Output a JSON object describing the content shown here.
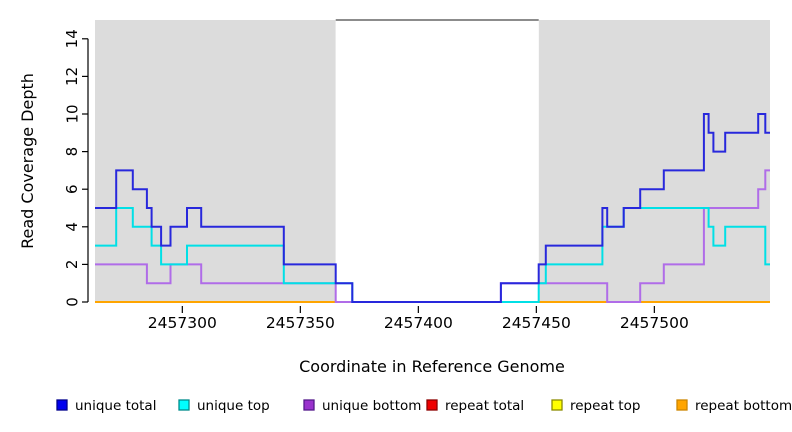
{
  "figure": {
    "background": "#FFFFFF"
  },
  "chart_data": {
    "type": "line",
    "step": true,
    "title": "",
    "xlabel": "Coordinate in Reference Genome",
    "ylabel": "Read Coverage Depth",
    "xlim": [
      2457263,
      2457549
    ],
    "ylim": [
      0,
      15
    ],
    "x_ticks": [
      "2457300",
      "2457350",
      "2457400",
      "2457450",
      "2457500"
    ],
    "x_tick_values": [
      2457300,
      2457350,
      2457400,
      2457450,
      2457500
    ],
    "y_ticks": [
      "0",
      "2",
      "4",
      "6",
      "8",
      "10",
      "12",
      "14"
    ],
    "y_tick_values": [
      0,
      2,
      4,
      6,
      8,
      10,
      12,
      14
    ],
    "grid": false,
    "legend_position": "bottom",
    "shaded_regions": [
      {
        "from": 2457263,
        "to": 2457365,
        "color": "#DCDCDC"
      },
      {
        "from": 2457451,
        "to": 2457549,
        "color": "#DCDCDC"
      }
    ],
    "gap_region": {
      "from": 2457365,
      "to": 2457451,
      "color": "#FFFFFF",
      "top_border_color": "#666666"
    },
    "series": [
      {
        "name": "unique total",
        "line_color": "#2828DC",
        "legend_fill": "#0000EE",
        "legend_border": "#00008B",
        "steps": [
          [
            2457263,
            5
          ],
          [
            2457272,
            7
          ],
          [
            2457279,
            6
          ],
          [
            2457285,
            5
          ],
          [
            2457287,
            4
          ],
          [
            2457291,
            3
          ],
          [
            2457295,
            4
          ],
          [
            2457302,
            5
          ],
          [
            2457308,
            4
          ],
          [
            2457343,
            2
          ],
          [
            2457365,
            1
          ],
          [
            2457372,
            0
          ],
          [
            2457435,
            1
          ],
          [
            2457451,
            2
          ],
          [
            2457454,
            3
          ],
          [
            2457478,
            5
          ],
          [
            2457480,
            4
          ],
          [
            2457487,
            5
          ],
          [
            2457494,
            6
          ],
          [
            2457504,
            7
          ],
          [
            2457521,
            10
          ],
          [
            2457523,
            9
          ],
          [
            2457525,
            8
          ],
          [
            2457530,
            9
          ],
          [
            2457544,
            10
          ],
          [
            2457547,
            9
          ]
        ]
      },
      {
        "name": "unique top",
        "line_color": "#00E0E6",
        "legend_fill": "#00FFFF",
        "legend_border": "#008B8B",
        "steps": [
          [
            2457263,
            3
          ],
          [
            2457272,
            5
          ],
          [
            2457279,
            4
          ],
          [
            2457287,
            3
          ],
          [
            2457291,
            2
          ],
          [
            2457302,
            3
          ],
          [
            2457343,
            1
          ],
          [
            2457372,
            0
          ],
          [
            2457451,
            1
          ],
          [
            2457454,
            2
          ],
          [
            2457478,
            4
          ],
          [
            2457487,
            5
          ],
          [
            2457523,
            4
          ],
          [
            2457525,
            3
          ],
          [
            2457530,
            4
          ],
          [
            2457547,
            2
          ]
        ]
      },
      {
        "name": "unique bottom",
        "line_color": "#B06CE8",
        "legend_fill": "#9A32CD",
        "legend_border": "#551A8B",
        "steps": [
          [
            2457263,
            2
          ],
          [
            2457285,
            1
          ],
          [
            2457295,
            2
          ],
          [
            2457308,
            1
          ],
          [
            2457365,
            0
          ],
          [
            2457435,
            1
          ],
          [
            2457480,
            0
          ],
          [
            2457494,
            1
          ],
          [
            2457504,
            2
          ],
          [
            2457521,
            5
          ],
          [
            2457544,
            6
          ],
          [
            2457547,
            7
          ]
        ]
      },
      {
        "name": "repeat total",
        "line_color": "#DC2828",
        "legend_fill": "#EE0000",
        "legend_border": "#8B0000",
        "steps": [
          [
            2457263,
            0
          ]
        ]
      },
      {
        "name": "repeat top",
        "line_color": "#F0F020",
        "legend_fill": "#FFFF00",
        "legend_border": "#8B8B00",
        "steps": [
          [
            2457263,
            0
          ]
        ]
      },
      {
        "name": "repeat bottom",
        "line_color": "#FFA500",
        "legend_fill": "#FFA500",
        "legend_border": "#CD8500",
        "steps": [
          [
            2457263,
            0
          ]
        ]
      }
    ],
    "draw_order": [
      "repeat total",
      "repeat top",
      "repeat bottom",
      "unique bottom",
      "unique top",
      "unique total"
    ]
  }
}
